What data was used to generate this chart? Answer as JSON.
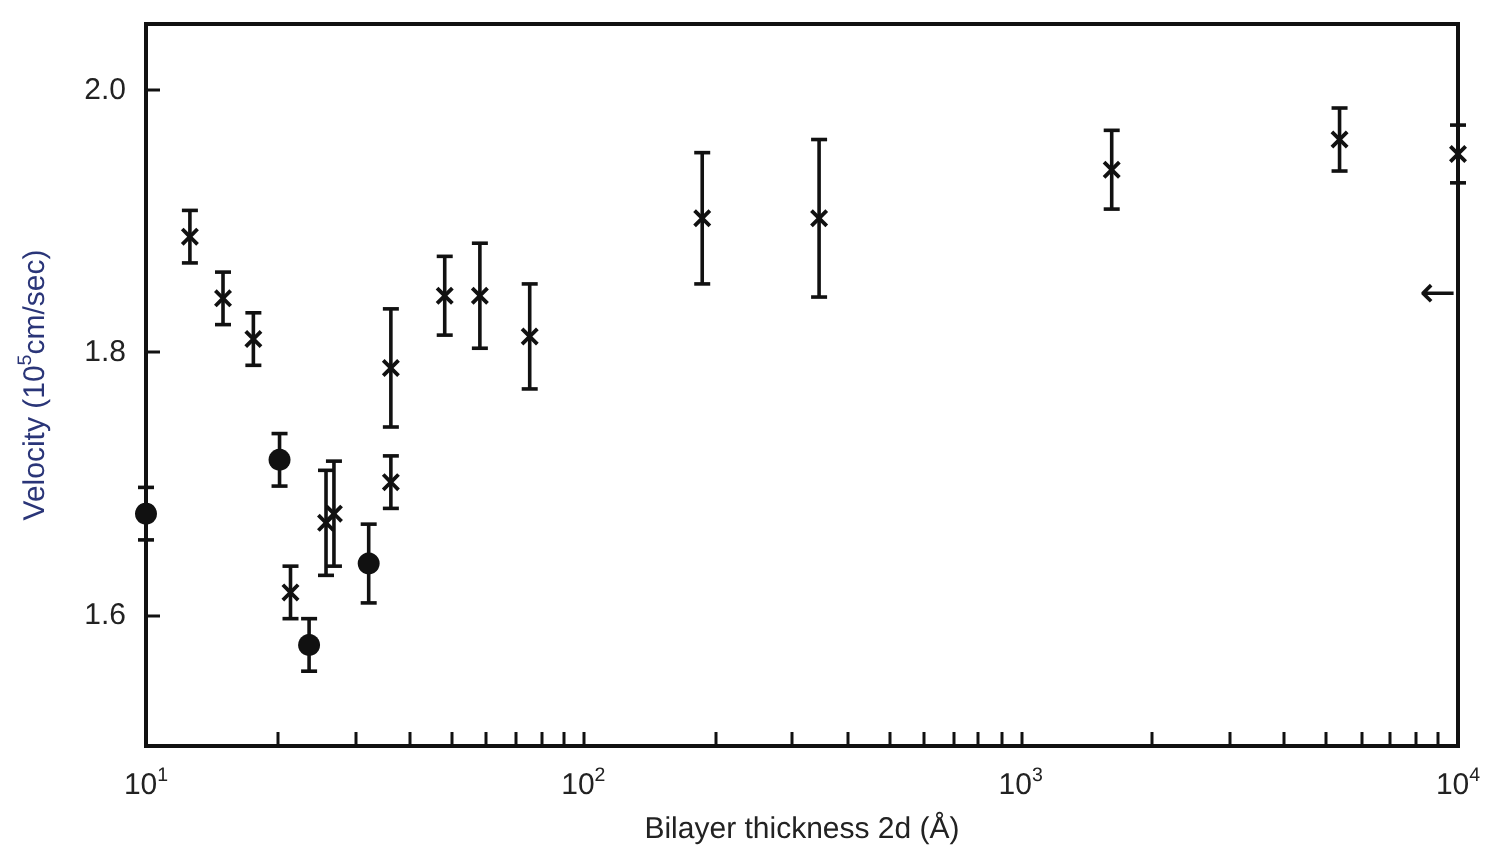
{
  "chart_data": {
    "type": "scatter",
    "xlabel": "Bilayer thickness 2d (Å)",
    "ylabel": "Velocity (10$^{5}$cm/sec)",
    "log": "x",
    "xlim": [
      10,
      10000
    ],
    "xticks": [
      {
        "value": 10,
        "label": "10$^{1}$"
      },
      {
        "value": 20,
        "label": null
      },
      {
        "value": 30,
        "label": null
      },
      {
        "value": 40,
        "label": null
      },
      {
        "value": 50,
        "label": null
      },
      {
        "value": 60,
        "label": null
      },
      {
        "value": 70,
        "label": null
      },
      {
        "value": 80,
        "label": null
      },
      {
        "value": 90,
        "label": null
      },
      {
        "value": 100,
        "label": "10$^{2}$"
      },
      {
        "value": 200,
        "label": null
      },
      {
        "value": 300,
        "label": null
      },
      {
        "value": 400,
        "label": null
      },
      {
        "value": 500,
        "label": null
      },
      {
        "value": 600,
        "label": null
      },
      {
        "value": 700,
        "label": null
      },
      {
        "value": 800,
        "label": null
      },
      {
        "value": 900,
        "label": null
      },
      {
        "value": 1000,
        "label": "10$^{3}$"
      },
      {
        "value": 2000,
        "label": null
      },
      {
        "value": 3000,
        "label": null
      },
      {
        "value": 4000,
        "label": null
      },
      {
        "value": 5000,
        "label": null
      },
      {
        "value": 6000,
        "label": null
      },
      {
        "value": 7000,
        "label": null
      },
      {
        "value": 8000,
        "label": null
      },
      {
        "value": 9000,
        "label": null
      },
      {
        "value": 10000,
        "label": "10$^{4}$"
      }
    ],
    "ylim": [
      1.5,
      2.05
    ],
    "yticks": [
      1.6,
      1.8,
      {
        "value": 2.0,
        "label": "2.0"
      }
    ],
    "grid": false,
    "series": [
      {
        "color": "#111111",
        "marker": "circle",
        "x": [
          10.0,
          20.2,
          23.6,
          32.3
        ],
        "values": [
          1.677,
          1.718,
          1.577,
          1.639
        ],
        "errors": [
          0.02,
          0.02,
          0.02,
          0.03
        ]
      },
      {
        "color": "#111111",
        "marker": "cross",
        "x": [
          12.6,
          15.0,
          17.6,
          21.4,
          25.8,
          26.9,
          36.3,
          36.3,
          48.2,
          58.0,
          75.4,
          187,
          346,
          1615,
          5360,
          10000
        ],
        "values": [
          1.888,
          1.841,
          1.81,
          1.617,
          1.67,
          1.677,
          1.788,
          1.701,
          1.843,
          1.843,
          1.812,
          1.902,
          1.902,
          1.939,
          1.962,
          1.951
        ],
        "errors": [
          0.02,
          0.02,
          0.02,
          0.02,
          0.04,
          0.04,
          0.045,
          0.02,
          0.03,
          0.04,
          0.04,
          0.05,
          0.06,
          0.03,
          0.024,
          0.022
        ]
      }
    ],
    "annotations": [
      "←"
    ]
  }
}
